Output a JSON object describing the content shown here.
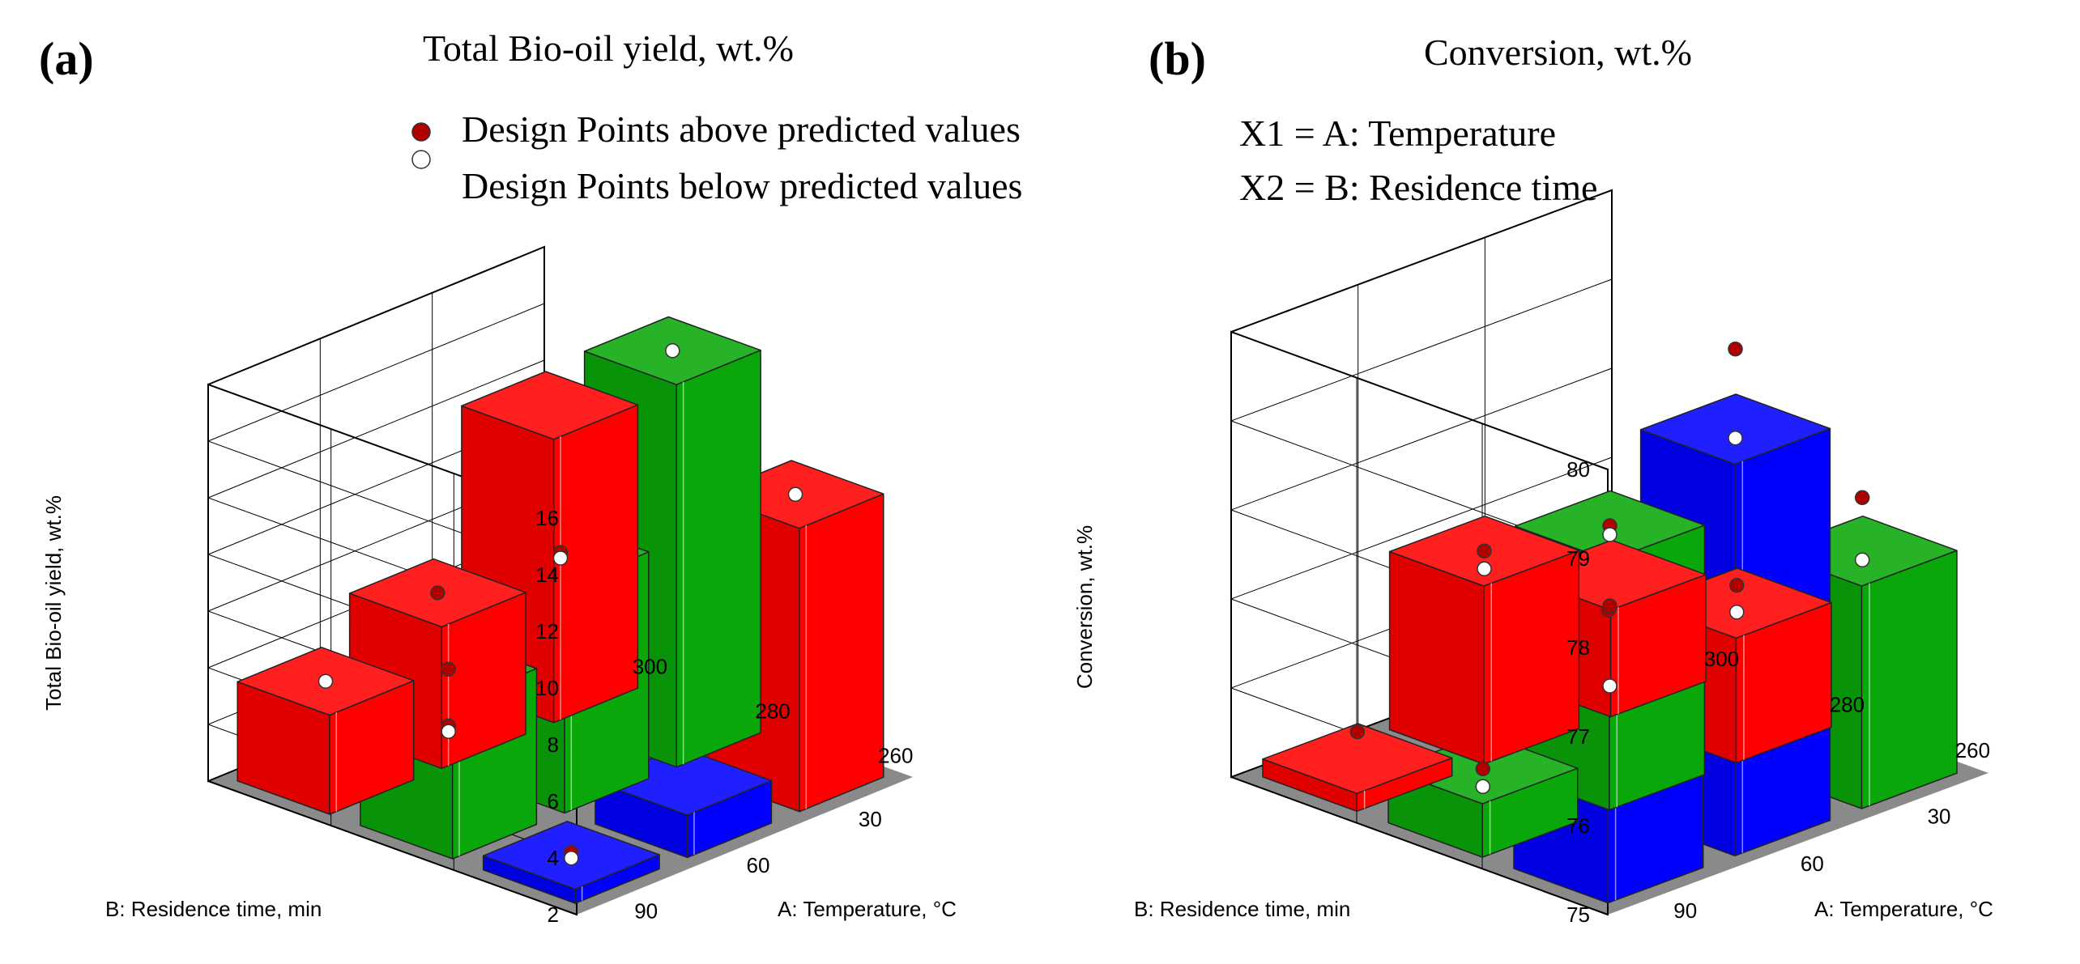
{
  "colors": {
    "red": "#ff0000",
    "green": "#0aa70a",
    "blue": "#0000ff",
    "floor": "#8a8a8a",
    "point_above": "#b00000",
    "point_below": "#ffffff"
  },
  "chart_data": [
    {
      "type": "bar",
      "subtype": "3d-bar",
      "panel_label": "(a)",
      "title": "Total Bio-oil yield, wt.%",
      "legend": {
        "above_label": "Design Points above predicted values",
        "below_label": "Design Points below predicted values"
      },
      "zlabel": "Total Bio-oil yield, wt.%",
      "zlim": [
        2,
        16
      ],
      "z_ticks": [
        "2",
        "4",
        "6",
        "8",
        "10",
        "12",
        "14",
        "16"
      ],
      "xlabel": "A: Temperature, °C",
      "x_ticks": [
        "260",
        "280",
        "300"
      ],
      "ylabel": "B: Residence time, min",
      "y_ticks": [
        "30",
        "60",
        "90"
      ],
      "bars": [
        {
          "temperature": 260,
          "time": 90,
          "value": 2.5,
          "color": "blue"
        },
        {
          "temperature": 280,
          "time": 90,
          "value": 3.5,
          "color": "blue"
        },
        {
          "temperature": 300,
          "time": 90,
          "value": 12.0,
          "color": "red"
        },
        {
          "temperature": 260,
          "time": 60,
          "value": 7.5,
          "color": "green"
        },
        {
          "temperature": 280,
          "time": 60,
          "value": 10.0,
          "color": "green"
        },
        {
          "temperature": 300,
          "time": 60,
          "value": 15.5,
          "color": "green"
        },
        {
          "temperature": 260,
          "time": 30,
          "value": 5.5,
          "color": "red"
        },
        {
          "temperature": 280,
          "time": 30,
          "value": 7.0,
          "color": "red"
        },
        {
          "temperature": 300,
          "time": 30,
          "value": 12.0,
          "color": "red"
        }
      ],
      "design_points": [
        {
          "temperature": 260,
          "time": 90,
          "value": 2.6,
          "position": "above"
        },
        {
          "temperature": 260,
          "time": 90,
          "value": 2.4,
          "position": "below"
        },
        {
          "temperature": 260,
          "time": 60,
          "value": 7.5,
          "position": "above"
        },
        {
          "temperature": 260,
          "time": 60,
          "value": 5.5,
          "position": "above"
        },
        {
          "temperature": 260,
          "time": 60,
          "value": 5.3,
          "position": "below"
        },
        {
          "temperature": 280,
          "time": 60,
          "value": 10.0,
          "position": "above"
        },
        {
          "temperature": 280,
          "time": 60,
          "value": 9.8,
          "position": "below"
        },
        {
          "temperature": 300,
          "time": 60,
          "value": 15.5,
          "position": "below"
        },
        {
          "temperature": 300,
          "time": 90,
          "value": 12.0,
          "position": "below"
        },
        {
          "temperature": 260,
          "time": 30,
          "value": 5.5,
          "position": "below"
        },
        {
          "temperature": 280,
          "time": 30,
          "value": 7.0,
          "position": "above"
        }
      ]
    },
    {
      "type": "bar",
      "subtype": "3d-bar",
      "panel_label": "(b)",
      "title": "Conversion, wt.%",
      "factors": {
        "x1": "X1 = A: Temperature",
        "x2": "X2 = B: Residence time"
      },
      "zlabel": "Conversion, wt.%",
      "zlim": [
        75,
        80
      ],
      "z_ticks": [
        "75",
        "76",
        "77",
        "78",
        "79",
        "80"
      ],
      "xlabel": "A: Temperature, °C",
      "x_ticks": [
        "260",
        "280",
        "300"
      ],
      "ylabel": "B: Residence time, min",
      "y_ticks": [
        "30",
        "60",
        "90"
      ],
      "bars": [
        {
          "temperature": 260,
          "time": 90,
          "value": 77.9,
          "color": "blue"
        },
        {
          "temperature": 280,
          "time": 90,
          "value": 79.4,
          "color": "blue"
        },
        {
          "temperature": 300,
          "time": 90,
          "value": 77.5,
          "color": "green"
        },
        {
          "temperature": 260,
          "time": 60,
          "value": 75.6,
          "color": "green"
        },
        {
          "temperature": 280,
          "time": 60,
          "value": 77.8,
          "color": "green"
        },
        {
          "temperature": 300,
          "time": 60,
          "value": 76.4,
          "color": "red"
        },
        {
          "temperature": 260,
          "time": 30,
          "value": 75.2,
          "color": "red"
        },
        {
          "temperature": 280,
          "time": 30,
          "value": 77.0,
          "color": "red"
        },
        {
          "temperature": 300,
          "time": 30,
          "value": 76.2,
          "color": "red"
        }
      ],
      "design_points": [
        {
          "temperature": 260,
          "time": 90,
          "value": 77.9,
          "position": "above"
        },
        {
          "temperature": 280,
          "time": 90,
          "value": 80.3,
          "position": "above"
        },
        {
          "temperature": 280,
          "time": 90,
          "value": 79.3,
          "position": "below"
        },
        {
          "temperature": 260,
          "time": 60,
          "value": 75.6,
          "position": "above"
        },
        {
          "temperature": 260,
          "time": 60,
          "value": 75.4,
          "position": "below"
        },
        {
          "temperature": 280,
          "time": 60,
          "value": 77.8,
          "position": "above"
        },
        {
          "temperature": 280,
          "time": 60,
          "value": 77.7,
          "position": "below"
        },
        {
          "temperature": 280,
          "time": 60,
          "value": 76.9,
          "position": "above"
        },
        {
          "temperature": 280,
          "time": 60,
          "value": 76.0,
          "position": "below"
        },
        {
          "temperature": 300,
          "time": 90,
          "value": 78.1,
          "position": "above"
        },
        {
          "temperature": 300,
          "time": 90,
          "value": 77.4,
          "position": "below"
        },
        {
          "temperature": 300,
          "time": 60,
          "value": 76.6,
          "position": "above"
        },
        {
          "temperature": 300,
          "time": 60,
          "value": 76.3,
          "position": "below"
        },
        {
          "temperature": 260,
          "time": 30,
          "value": 75.5,
          "position": "above"
        },
        {
          "temperature": 280,
          "time": 30,
          "value": 77.0,
          "position": "above"
        },
        {
          "temperature": 280,
          "time": 30,
          "value": 76.8,
          "position": "below"
        }
      ]
    }
  ]
}
